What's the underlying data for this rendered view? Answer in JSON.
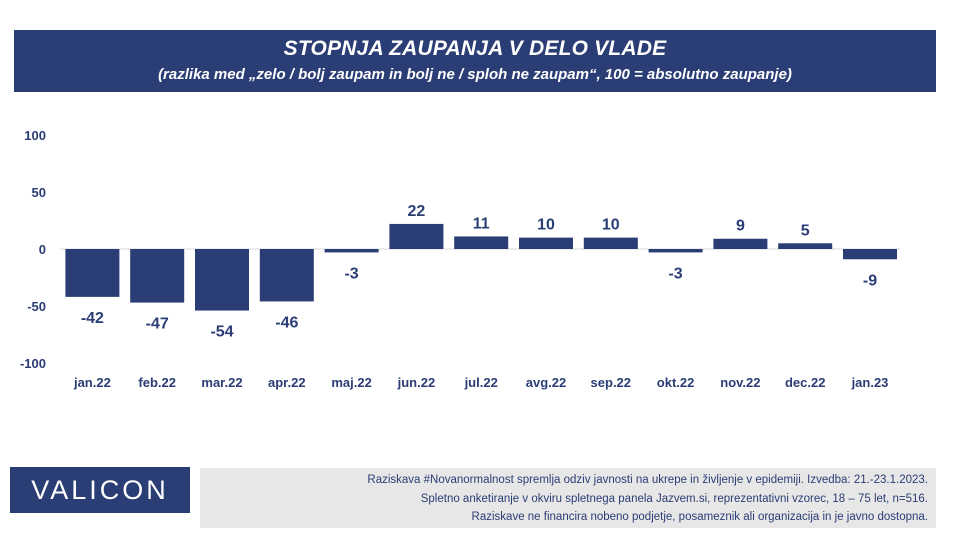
{
  "header": {
    "title": "STOPNJA ZAUPANJA V DELO VLADE",
    "subtitle": "(razlika med „zelo / bolj zaupam in bolj ne / sploh ne zaupam“, 100 = absolutno zaupanje)"
  },
  "colors": {
    "brand": "#2b3d75",
    "bar": "#2b3d75",
    "zero_line": "#d9d9d9",
    "note_bg": "#e7e7e7"
  },
  "chart_data": {
    "type": "bar",
    "title": "STOPNJA ZAUPANJA V DELO VLADE",
    "subtitle": "(razlika med „zelo / bolj zaupam in bolj ne / sploh ne zaupam“, 100 = absolutno zaupanje)",
    "categories": [
      "jan.22",
      "feb.22",
      "mar.22",
      "apr.22",
      "maj.22",
      "jun.22",
      "jul.22",
      "avg.22",
      "sep.22",
      "okt.22",
      "nov.22",
      "dec.22",
      "jan.23"
    ],
    "values": [
      -42,
      -47,
      -54,
      -46,
      -3,
      22,
      11,
      10,
      10,
      -3,
      9,
      5,
      -9
    ],
    "ylim": [
      -100,
      100
    ],
    "yticks": [
      100,
      50,
      0,
      -50,
      -100
    ],
    "xlabel": "",
    "ylabel": "",
    "grid": false,
    "legend": "none"
  },
  "footer": {
    "logo": "VALICON",
    "notes": [
      "Raziskava #Novanormalnost spremlja odziv javnosti na ukrepe in življenje v epidemiji. Izvedba: 21.-23.1.2023.",
      "Spletno anketiranje v okviru spletnega panela Jazvem.si, reprezentativni vzorec, 18 – 75 let, n=516.",
      "Raziskave ne financira nobeno podjetje, posameznik ali organizacija in je javno dostopna."
    ]
  }
}
